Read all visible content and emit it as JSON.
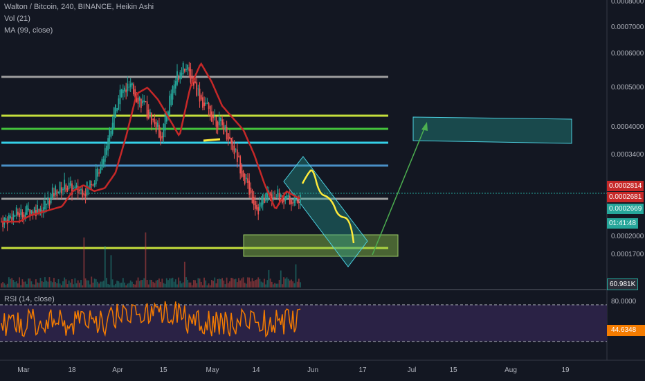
{
  "chart_title": "Walton / Bitcoin, 240, BINANCE, Heikin Ashi",
  "vol_label": "Vol (21)",
  "ma_label": "MA (99, close)",
  "rsi_label": "RSI (14, close)",
  "colors": {
    "background": "#131722",
    "rsi_band": "#2a2245",
    "ma_line": "#c62828",
    "rsi_line": "#f57c00",
    "arrow": "#4caf50",
    "forecast": "#ffeb3b",
    "level_grey": "#9e9e9e",
    "level_yellowgreen": "#c6e03c",
    "level_green": "#44c23c",
    "level_cyan": "#35d0e8",
    "level_blue": "#4a90c8"
  },
  "price_axis": {
    "ticks": [
      "0.0008000",
      "0.0007000",
      "0.0006000",
      "0.0005000",
      "0.0004000",
      "0.0003400",
      "0.0002000",
      "0.0001700"
    ],
    "tags": [
      {
        "label": "0.0002814",
        "color": "#c62828"
      },
      {
        "label": "0.0002681",
        "color": "#c62828"
      },
      {
        "label": "0.0002669",
        "color": "#26a69a"
      },
      {
        "label": "01:41:48",
        "color": "#26a69a"
      },
      {
        "label": "60.981K",
        "color": "#2a2e39"
      }
    ]
  },
  "rsi_axis": {
    "ticks": [
      "80.0000"
    ],
    "tag": "44.6348"
  },
  "time_axis": {
    "labels": [
      "Mar",
      "18",
      "Apr",
      "15",
      "May",
      "14",
      "Jun",
      "17",
      "Jul",
      "15",
      "Aug",
      "19"
    ]
  },
  "chart_data": {
    "type": "candlestick",
    "instrument": "Walton / Bitcoin",
    "timeframe": "240",
    "exchange": "BINANCE",
    "candle_style": "Heikin Ashi",
    "indicators": [
      "Vol (21)",
      "MA (99, close)",
      "RSI (14, close)"
    ],
    "levels": [
      0.000534,
      0.000425,
      0.0004,
      0.000365,
      0.00032,
      0.000267,
      0.00019
    ],
    "close_series": [
      0.00025,
      0.00026,
      0.000265,
      0.00027,
      0.000275,
      0.0003,
      0.00031,
      0.0003,
      0.000305,
      0.00033,
      0.00039,
      0.00046,
      0.00047,
      0.00045,
      0.00042,
      0.00039,
      0.00047,
      0.00051,
      0.00048,
      0.00044,
      0.00042,
      0.0004,
      0.00036,
      0.00031,
      0.00027,
      0.0003,
      0.00029,
      0.000285,
      0.000282
    ],
    "rsi_reference": [
      80,
      20
    ],
    "rsi_last": 44.6348,
    "volume_last": "60.981K"
  }
}
